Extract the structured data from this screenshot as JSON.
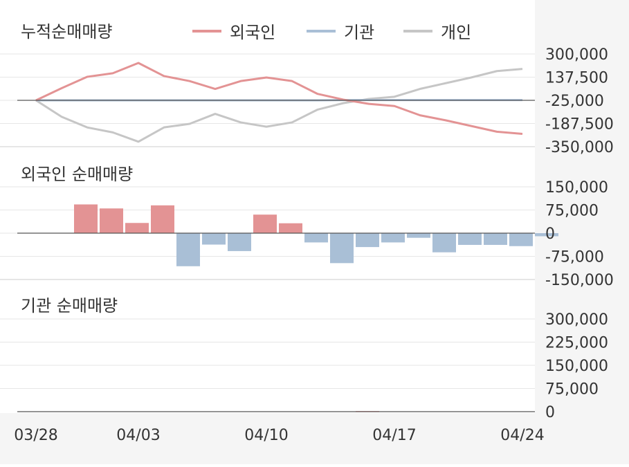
{
  "x_labels": [
    "03/28",
    "04/03",
    "04/10",
    "04/17",
    "04/24"
  ],
  "colors": {
    "foreign": "#e39394",
    "institution": "#a9bfd6",
    "individual": "#c6c6c6",
    "panel_bg": "#f5f5f5",
    "grid": "#e6e6e6",
    "axis_line": "#555555",
    "text": "#333333"
  },
  "chart_data": [
    {
      "type": "line",
      "title": "누적순매매량",
      "legend_position": "top",
      "yticks": [
        "300,000",
        "137,500",
        "-25,000",
        "-187,500",
        "-350,000"
      ],
      "ylim": [
        -350000,
        300000
      ],
      "series": [
        {
          "name": "외국인",
          "color_key": "foreign",
          "values": [
            0,
            85000,
            165000,
            190000,
            262000,
            170000,
            135000,
            80000,
            135000,
            160000,
            135000,
            45000,
            5000,
            -25000,
            -40000,
            -105000,
            -140000,
            -180000,
            -220000,
            -235000
          ]
        },
        {
          "name": "기관",
          "color_key": "institution",
          "values": [
            0,
            0,
            0,
            0,
            0,
            0,
            0,
            0,
            0,
            0,
            0,
            0,
            2000,
            2000,
            2000,
            2000,
            2000,
            2000,
            2000,
            2000
          ]
        },
        {
          "name": "개인",
          "color_key": "individual",
          "values": [
            0,
            -115000,
            -190000,
            -225000,
            -290000,
            -190000,
            -165000,
            -95000,
            -155000,
            -185000,
            -155000,
            -65000,
            -20000,
            10000,
            25000,
            80000,
            120000,
            160000,
            205000,
            220000
          ]
        }
      ]
    },
    {
      "type": "bar",
      "title": "외국인 순매매량",
      "yticks": [
        "150,000",
        "75,000",
        "0",
        "-75,000",
        "-150,000"
      ],
      "ylim": [
        -150000,
        150000
      ],
      "values": [
        0,
        93000,
        80000,
        33000,
        90000,
        -107000,
        -37000,
        -58000,
        60000,
        32000,
        -30000,
        -97000,
        -45000,
        -30000,
        -15000,
        -62000,
        -38000,
        -38000,
        -42000,
        -10000
      ]
    },
    {
      "type": "bar",
      "title": "기관 순매매량",
      "yticks": [
        "300,000",
        "225,000",
        "150,000",
        "75,000",
        "0"
      ],
      "ylim": [
        0,
        300000
      ],
      "values": [
        0,
        0,
        0,
        0,
        0,
        0,
        0,
        0,
        0,
        0,
        0,
        0,
        2000,
        0,
        0,
        0,
        0,
        0,
        0,
        0
      ]
    }
  ]
}
